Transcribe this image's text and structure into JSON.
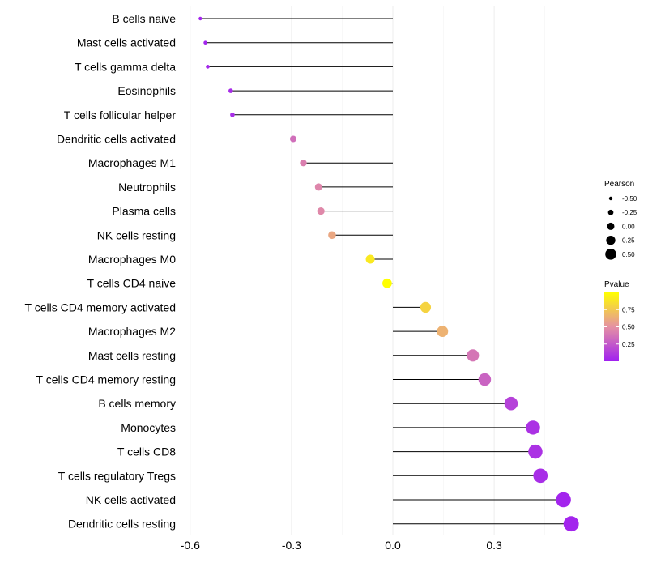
{
  "chart_data": {
    "type": "lollipop",
    "title": "",
    "xlabel": "",
    "ylabel": "",
    "xlim": [
      -0.61,
      0.54
    ],
    "xticks": [
      -0.6,
      -0.3,
      0.0,
      0.3
    ],
    "xtick_labels": [
      "-0.6",
      "-0.3",
      "0.0",
      "0.3"
    ],
    "grid": true,
    "categories": [
      "B cells naive",
      "Mast cells activated",
      "T cells gamma delta",
      "Eosinophils",
      "T cells follicular helper",
      "Dendritic cells activated",
      "Macrophages M1",
      "Neutrophils",
      "Plasma cells",
      "NK cells resting",
      "Macrophages M0",
      "T cells CD4 naive",
      "T cells CD4 memory activated",
      "Macrophages M2",
      "Mast cells resting",
      "T cells CD4 memory resting",
      "B cells memory",
      "Monocytes",
      "T cells CD8",
      "T cells regulatory  Tregs ",
      "NK cells activated",
      "Dendritic cells resting"
    ],
    "pearson": [
      -0.57,
      -0.555,
      -0.548,
      -0.48,
      -0.475,
      -0.295,
      -0.265,
      -0.22,
      -0.213,
      -0.18,
      -0.067,
      -0.017,
      0.097,
      0.147,
      0.237,
      0.272,
      0.35,
      0.415,
      0.422,
      0.437,
      0.505,
      0.528
    ],
    "pvalue": [
      0.02,
      0.02,
      0.03,
      0.05,
      0.06,
      0.35,
      0.42,
      0.45,
      0.46,
      0.6,
      0.9,
      1.0,
      0.8,
      0.65,
      0.38,
      0.3,
      0.15,
      0.08,
      0.08,
      0.06,
      0.02,
      0.02
    ],
    "legend_size": {
      "title": "Pearson",
      "position": "right",
      "entries": [
        {
          "label": "-0.50",
          "value": -0.5
        },
        {
          "label": "-0.25",
          "value": -0.25
        },
        {
          "label": "0.00",
          "value": 0.0
        },
        {
          "label": "0.25",
          "value": 0.25
        },
        {
          "label": "0.50",
          "value": 0.5
        }
      ]
    },
    "legend_color": {
      "title": "Pvalue",
      "position": "right",
      "ticks": [
        {
          "label": "0.75",
          "value": 0.75
        },
        {
          "label": "0.50",
          "value": 0.5
        },
        {
          "label": "0.25",
          "value": 0.25
        }
      ],
      "range": [
        0.0,
        1.0
      ],
      "colors": [
        "#a020f0",
        "#e591a3",
        "#ffff00"
      ]
    }
  }
}
